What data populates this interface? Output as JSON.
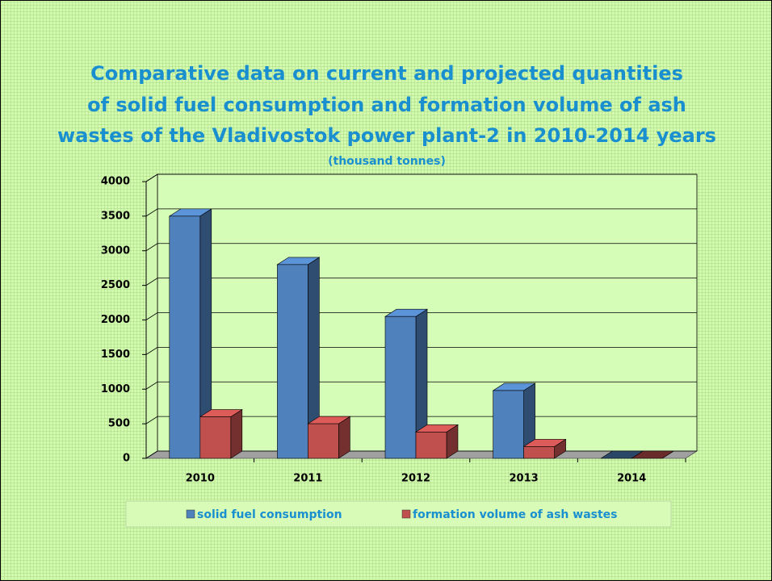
{
  "chart_data": {
    "type": "bar3d",
    "title": [
      "Comparative data on current and projected quantities",
      "of solid fuel consumption and formation volume of ash",
      "wastes of the Vladivostok power plant-2 in 2010-2014 years"
    ],
    "subtitle": "(thousand tonnes)",
    "categories": [
      "2010",
      "2011",
      "2012",
      "2013",
      "2014"
    ],
    "series": [
      {
        "name": "solid fuel consumption",
        "color": "#4f81bd",
        "values": [
          3500,
          2800,
          2050,
          980,
          0
        ]
      },
      {
        "name": "formation volume of ash wastes",
        "color": "#c0504d",
        "values": [
          600,
          500,
          380,
          170,
          0
        ]
      }
    ],
    "ylim": [
      0,
      4000
    ],
    "yticks": [
      0,
      500,
      1000,
      1500,
      2000,
      2500,
      3000,
      3500,
      4000
    ],
    "grid": true,
    "legend": "bottom"
  }
}
